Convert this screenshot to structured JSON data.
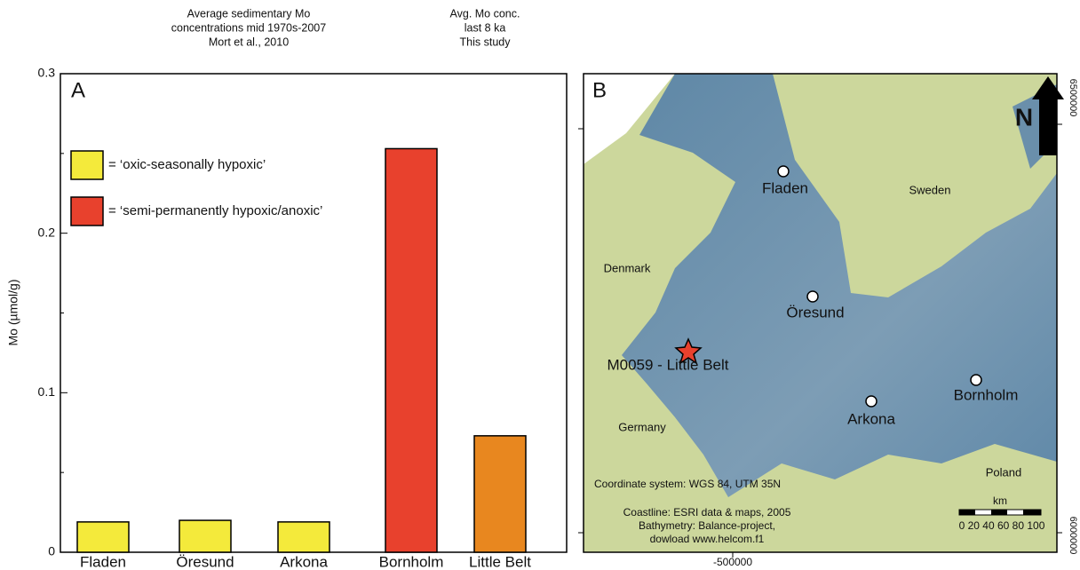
{
  "chart_data": {
    "type": "bar",
    "panel_label": "A",
    "ylabel": "Mo (µmol/g)",
    "annotations": [
      [
        "Average sedimentary Mo",
        "concentrations mid 1970s-2007",
        "Mort et al., 2010"
      ],
      [
        "Avg. Mo conc.",
        "last 8 ka",
        "This study"
      ]
    ],
    "categories": [
      "Fladen",
      "Öresund",
      "Arkona",
      "Bornholm",
      "Little Belt"
    ],
    "values": [
      0.019,
      0.02,
      0.019,
      0.253,
      0.073
    ],
    "colors": [
      "#f4ea3b",
      "#f4ea3b",
      "#f4ea3b",
      "#e8412d",
      "#e8871f"
    ],
    "legend": [
      {
        "label": "= ‘oxic-seasonally hypoxic’",
        "color": "#f4ea3b"
      },
      {
        "label": "= ‘semi-permanently hypoxic/anoxic’",
        "color": "#e8412d"
      }
    ],
    "ylim": [
      0,
      0.3
    ],
    "yticks": [
      0,
      0.1,
      0.2,
      0.3
    ],
    "minor_yticks": [
      0.05,
      0.15,
      0.25
    ]
  },
  "map": {
    "panel_label": "B",
    "north": "N",
    "places": [
      "Fladen",
      "Sweden",
      "Denmark",
      "Öresund",
      "M0059 - Little Belt",
      "Arkona",
      "Bornholm",
      "Germany",
      "Poland"
    ],
    "notes": [
      "Coordinate system: WGS 84, UTM 35N",
      "Coastline: ESRI data & maps, 2005",
      "Bathymetry: Balance-project,",
      "dowload www.helcom.f1"
    ],
    "scale_unit": "km",
    "scale_labels": "0 20 40 60 80 100",
    "x_label": "-500000",
    "y_labels": [
      "6500000",
      "6000000"
    ]
  }
}
